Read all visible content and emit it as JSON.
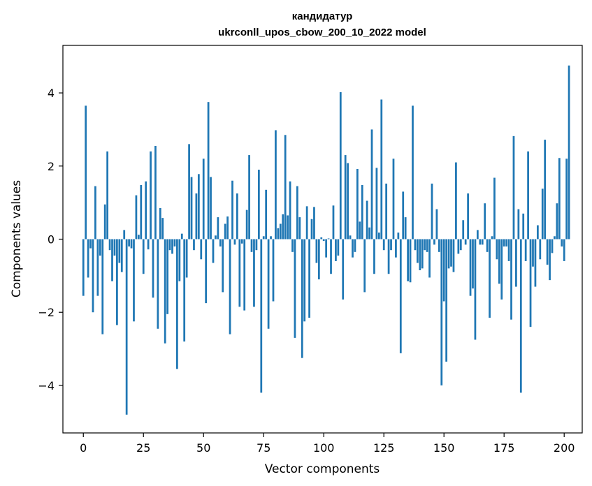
{
  "chart_data": {
    "type": "bar",
    "title": [
      "кандидатур",
      "ukrconll_upos_cbow_200_10_2022 model"
    ],
    "xlabel": "Vector components",
    "ylabel": "Components values",
    "xlim": [
      -8.5,
      207.5
    ],
    "ylim": [
      -5.3,
      5.3
    ],
    "xticks": [
      0,
      25,
      50,
      75,
      100,
      125,
      150,
      175,
      200
    ],
    "yticks": [
      -4,
      -2,
      0,
      2,
      4
    ],
    "ytick_labels": [
      "−4",
      "−2",
      "0",
      "2",
      "4"
    ],
    "bar_color": "#1f77b4",
    "values": [
      -1.55,
      3.65,
      -1.05,
      -0.25,
      -2.0,
      1.45,
      -1.55,
      -0.45,
      -2.6,
      0.95,
      2.4,
      -0.3,
      -1.15,
      -0.45,
      -2.35,
      -0.65,
      -0.9,
      0.25,
      -4.8,
      -0.2,
      -0.25,
      -2.25,
      1.2,
      0.12,
      1.48,
      -0.95,
      1.58,
      -0.28,
      2.4,
      -1.6,
      2.55,
      -2.45,
      0.85,
      0.58,
      -2.85,
      -2.05,
      -0.3,
      -0.4,
      -0.2,
      -3.55,
      -1.15,
      0.15,
      -2.8,
      -1.05,
      2.6,
      1.7,
      -0.3,
      1.25,
      1.78,
      -0.55,
      2.2,
      -1.75,
      3.75,
      1.7,
      -0.65,
      0.1,
      0.6,
      -0.2,
      -1.45,
      0.42,
      0.62,
      -2.6,
      1.6,
      -0.15,
      1.25,
      -1.85,
      -0.12,
      -1.95,
      0.8,
      2.3,
      -0.35,
      -1.85,
      -0.3,
      1.9,
      -4.2,
      0.08,
      1.35,
      -2.45,
      0.08,
      -1.7,
      2.98,
      0.3,
      0.42,
      0.68,
      2.85,
      0.65,
      1.58,
      -0.35,
      -2.7,
      1.45,
      0.6,
      -3.25,
      -2.25,
      0.9,
      -2.15,
      0.55,
      0.88,
      -0.65,
      -1.1,
      0.05,
      -0.05,
      -0.5,
      0.02,
      -0.95,
      0.92,
      -0.6,
      -0.45,
      4.02,
      -1.65,
      2.3,
      2.08,
      0.1,
      -0.5,
      -0.35,
      1.92,
      0.48,
      1.48,
      -1.45,
      1.05,
      0.32,
      3.0,
      -0.95,
      1.95,
      0.18,
      3.82,
      -0.3,
      1.52,
      -0.95,
      -0.3,
      2.2,
      -0.5,
      0.18,
      -3.12,
      1.3,
      0.6,
      -1.15,
      -1.18,
      3.65,
      -0.3,
      -0.65,
      -0.85,
      -0.8,
      -0.3,
      -0.35,
      -1.05,
      1.52,
      -0.15,
      0.82,
      -0.35,
      -4.0,
      -1.7,
      -3.35,
      -0.8,
      -0.75,
      -0.9,
      2.1,
      -0.4,
      -0.3,
      0.52,
      -0.15,
      1.25,
      -1.55,
      -1.35,
      -2.75,
      0.25,
      -0.15,
      -0.15,
      0.98,
      -0.35,
      -2.15,
      0.08,
      1.68,
      -0.55,
      -1.22,
      -1.65,
      -0.2,
      -0.2,
      -0.6,
      -2.2,
      2.82,
      -1.3,
      0.82,
      -4.2,
      0.7,
      -0.6,
      2.4,
      -2.4,
      -0.75,
      -1.3,
      0.38,
      -0.55,
      1.38,
      2.72,
      -0.7,
      -1.12,
      -0.38,
      0.08,
      0.98,
      2.22,
      -0.2,
      -0.6,
      2.2,
      4.75
    ]
  }
}
